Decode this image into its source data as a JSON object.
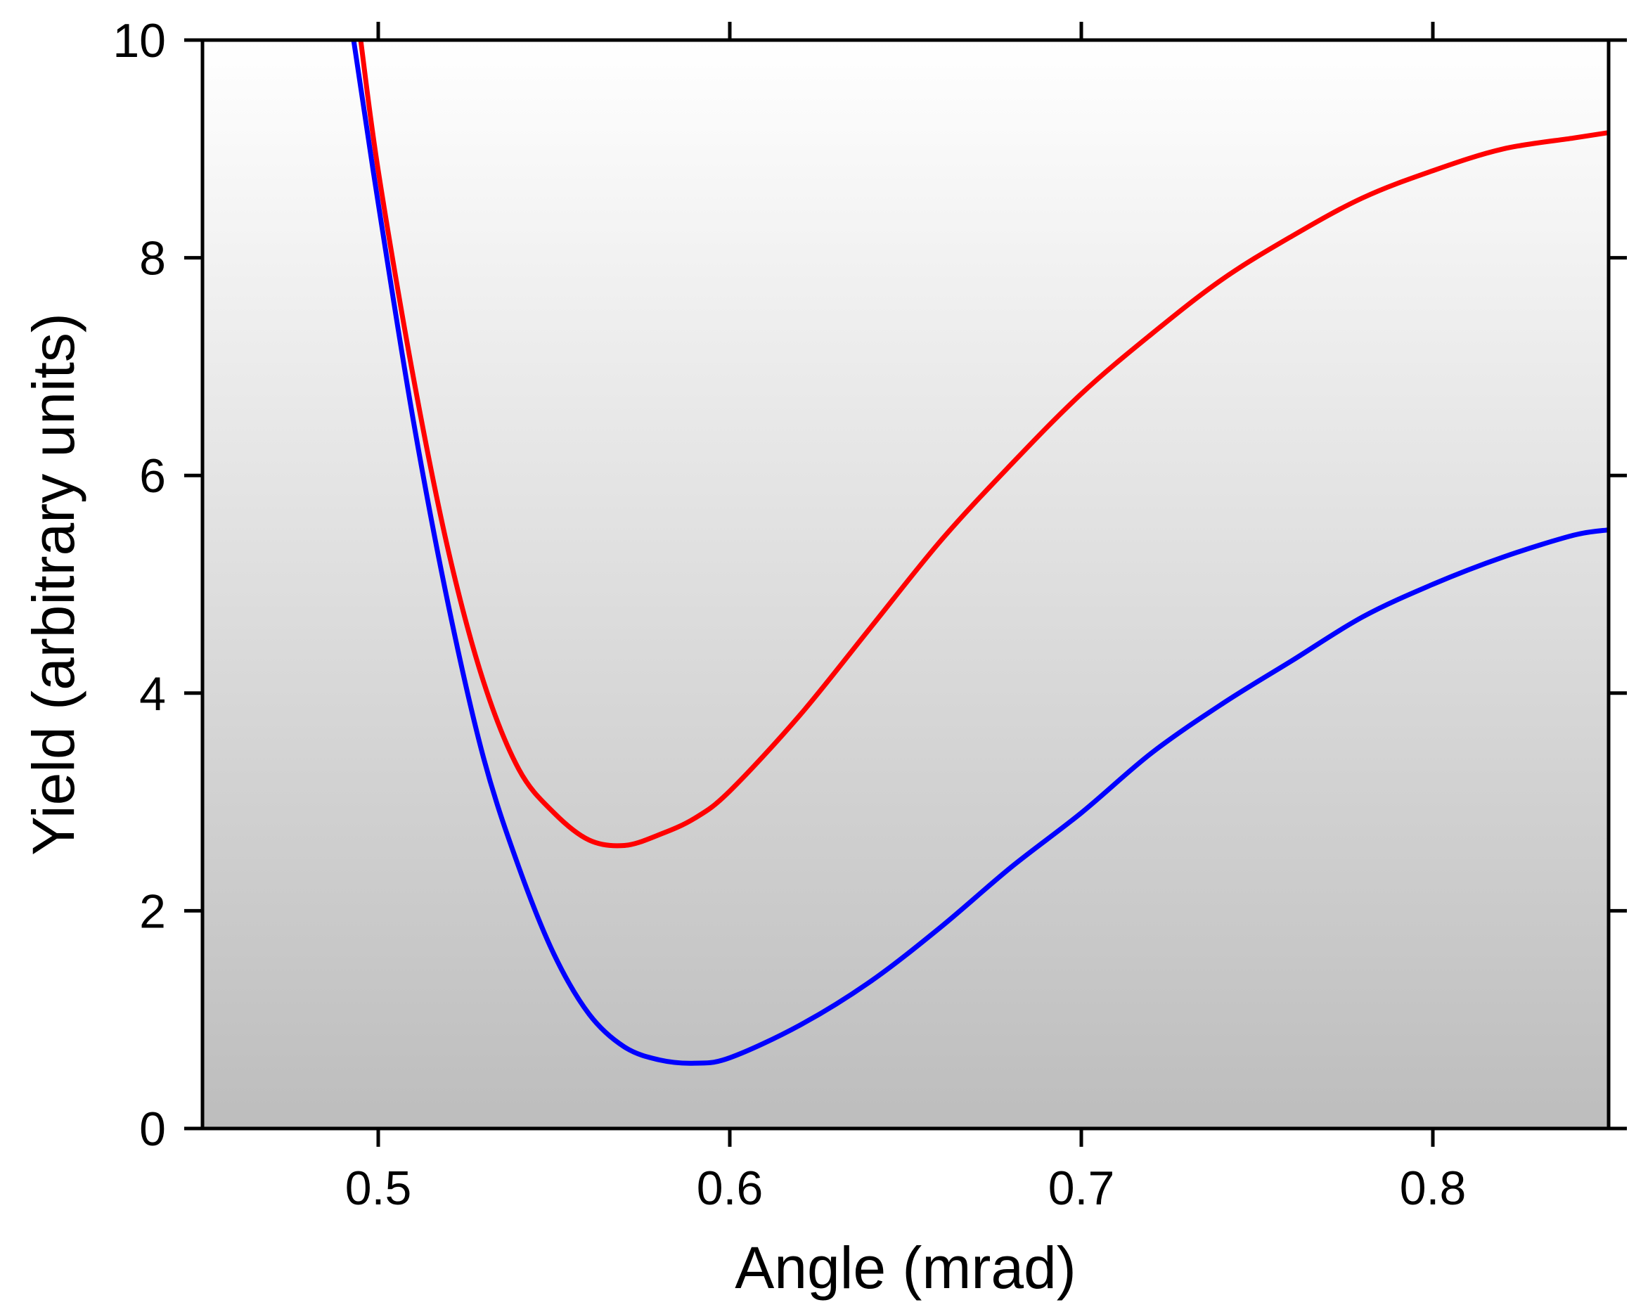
{
  "chart_data": {
    "type": "line",
    "title": "",
    "xlabel": "Angle (mrad)",
    "ylabel": "Yield (arbitrary units)",
    "xlim": [
      0.45,
      0.85
    ],
    "ylim": [
      0,
      10
    ],
    "xticks": [
      0.5,
      0.6,
      0.7,
      0.8
    ],
    "xtick_labels": [
      "0.5",
      "0.6",
      "0.7",
      "0.8"
    ],
    "yticks": [
      0,
      2,
      4,
      6,
      8,
      10
    ],
    "ytick_labels": [
      "0",
      "2",
      "4",
      "6",
      "8",
      "10"
    ],
    "grid": false,
    "background": {
      "gradient_top": "#ffffff",
      "gradient_bottom": "#bdbdbd"
    },
    "series": [
      {
        "name": "red curve",
        "color": "#ff0000",
        "x": [
          0.495,
          0.5,
          0.51,
          0.52,
          0.53,
          0.54,
          0.55,
          0.56,
          0.57,
          0.58,
          0.59,
          0.6,
          0.62,
          0.64,
          0.66,
          0.68,
          0.7,
          0.72,
          0.74,
          0.76,
          0.78,
          0.8,
          0.82,
          0.84,
          0.85
        ],
        "y": [
          10.0,
          8.8,
          6.9,
          5.3,
          4.1,
          3.3,
          2.9,
          2.65,
          2.6,
          2.7,
          2.85,
          3.1,
          3.8,
          4.6,
          5.4,
          6.1,
          6.75,
          7.3,
          7.8,
          8.2,
          8.55,
          8.8,
          9.0,
          9.1,
          9.15
        ]
      },
      {
        "name": "blue curve",
        "color": "#0000ff",
        "x": [
          0.493,
          0.5,
          0.51,
          0.52,
          0.53,
          0.54,
          0.55,
          0.56,
          0.57,
          0.58,
          0.59,
          0.6,
          0.62,
          0.64,
          0.66,
          0.68,
          0.7,
          0.72,
          0.74,
          0.76,
          0.78,
          0.8,
          0.82,
          0.84,
          0.85
        ],
        "y": [
          10.0,
          8.5,
          6.5,
          4.8,
          3.4,
          2.4,
          1.6,
          1.05,
          0.75,
          0.63,
          0.6,
          0.65,
          0.95,
          1.35,
          1.85,
          2.4,
          2.9,
          3.45,
          3.9,
          4.3,
          4.7,
          5.0,
          5.25,
          5.45,
          5.5
        ]
      }
    ]
  }
}
